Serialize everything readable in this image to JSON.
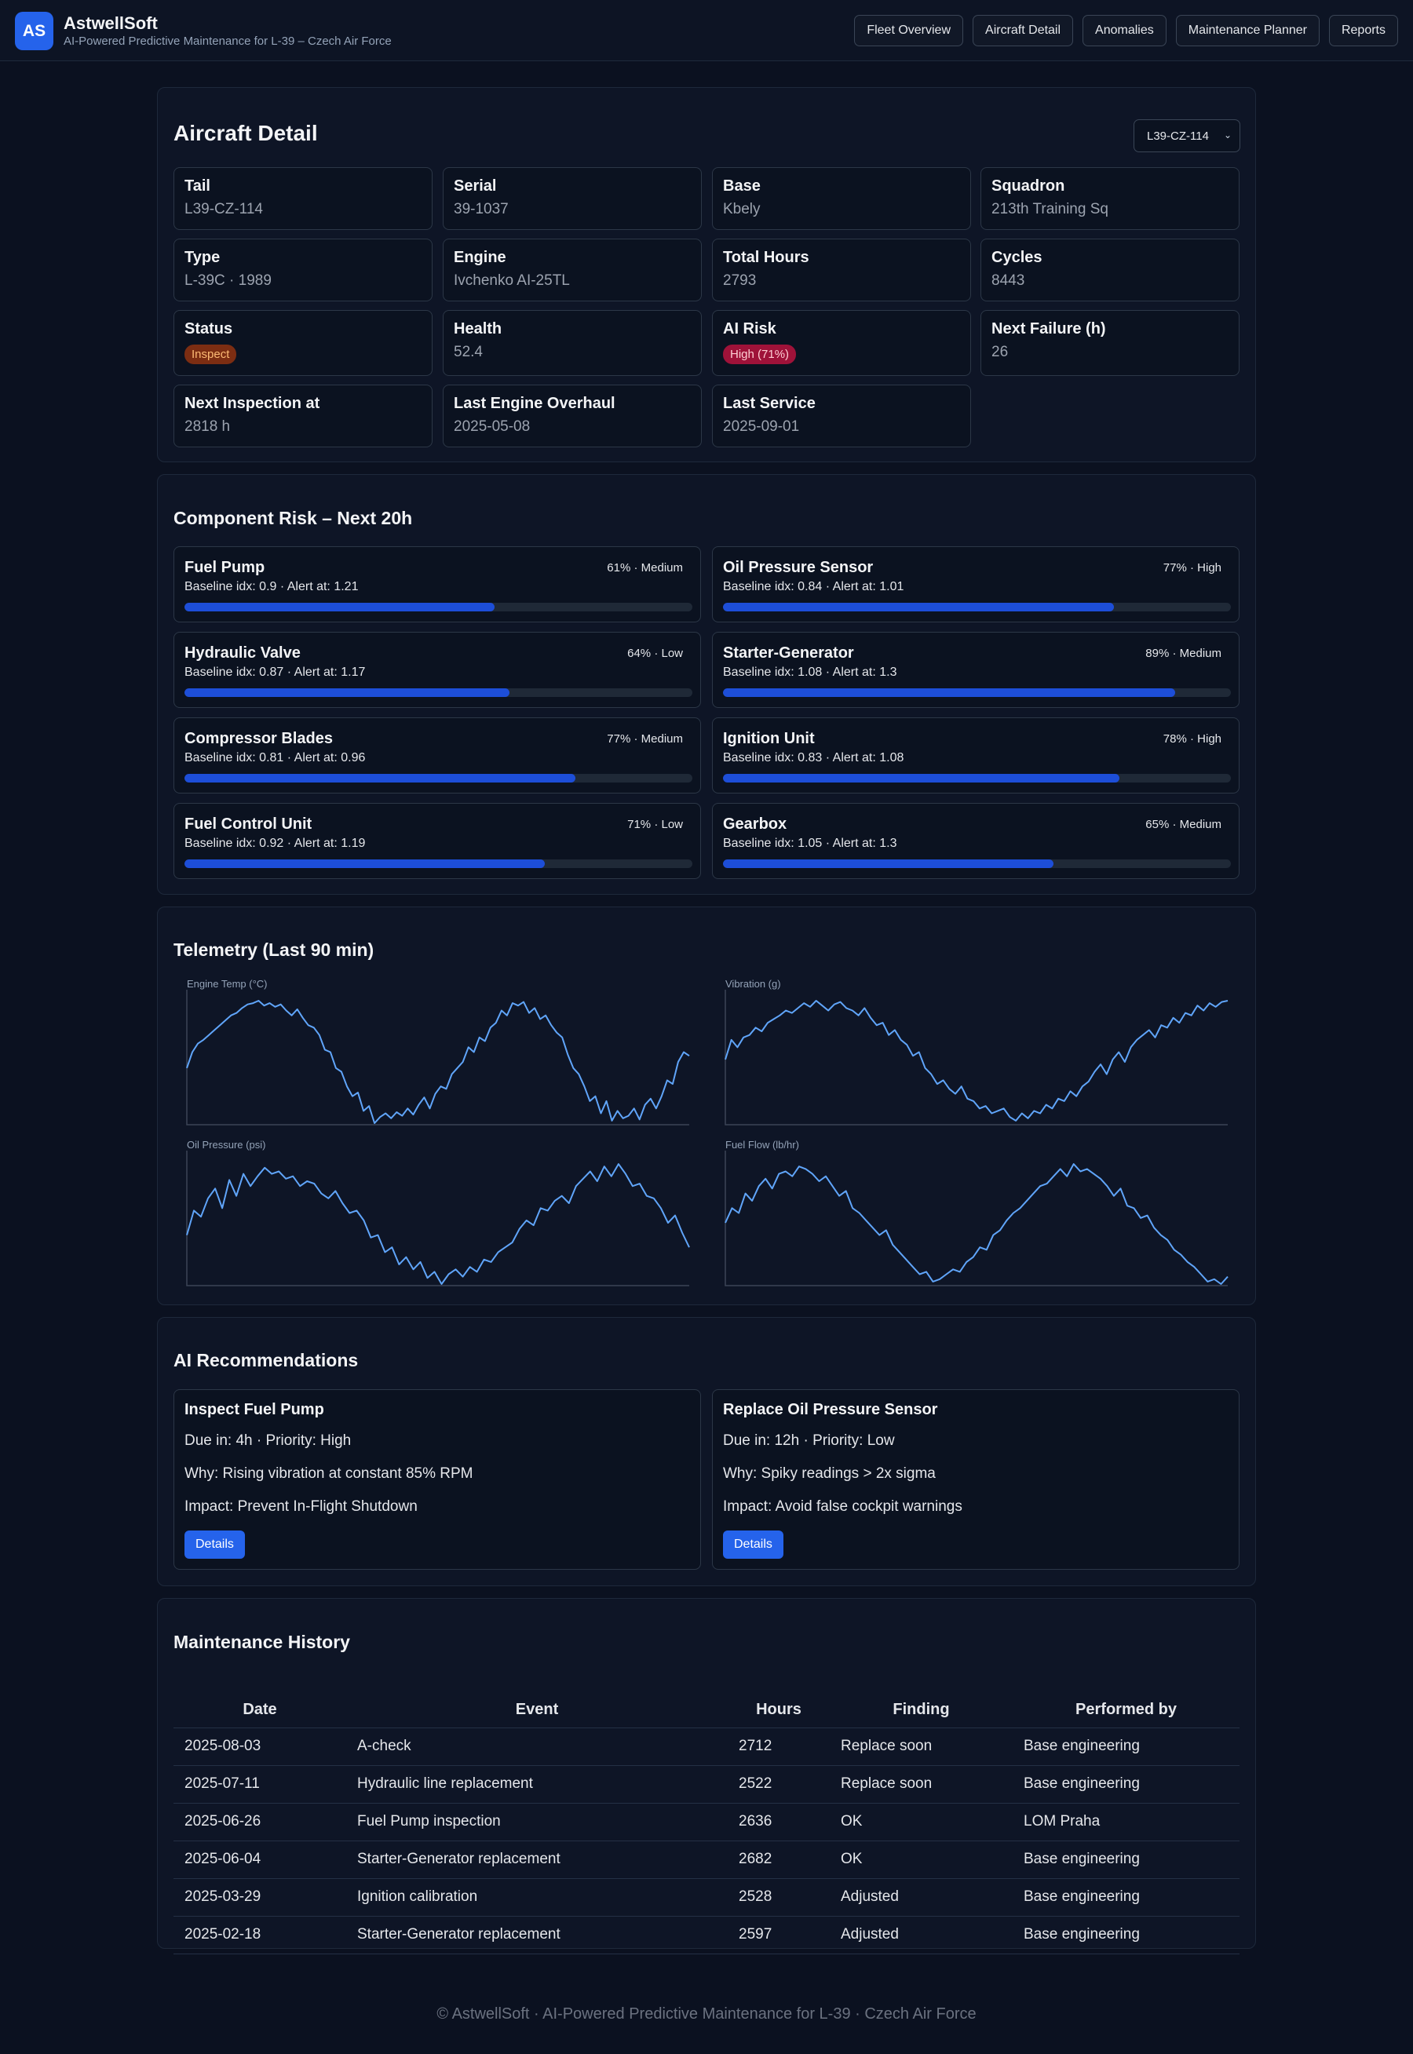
{
  "app": {
    "logo": "AS",
    "name": "AstwellSoft",
    "subtitle": "AI-Powered Predictive Maintenance for L-39 – Czech Air Force"
  },
  "nav": [
    "Fleet Overview",
    "Aircraft Detail",
    "Anomalies",
    "Maintenance Planner",
    "Reports"
  ],
  "detail": {
    "title": "Aircraft Detail",
    "selected_aircraft": "L39-CZ-114",
    "fields": [
      {
        "label": "Tail",
        "value": "L39-CZ-114"
      },
      {
        "label": "Serial",
        "value": "39-1037"
      },
      {
        "label": "Base",
        "value": "Kbely"
      },
      {
        "label": "Squadron",
        "value": "213th Training Sq"
      },
      {
        "label": "Type",
        "value": "L-39C · 1989"
      },
      {
        "label": "Engine",
        "value": "Ivchenko AI-25TL"
      },
      {
        "label": "Total Hours",
        "value": "2793"
      },
      {
        "label": "Cycles",
        "value": "8443"
      },
      {
        "label": "Status",
        "badge": "Inspect",
        "badge_color": "#7c2d12"
      },
      {
        "label": "Health",
        "value": "52.4"
      },
      {
        "label": "AI Risk",
        "badge": "High (71%)",
        "badge_color": "#9f1239"
      },
      {
        "label": "Next Failure (h)",
        "value": "26"
      },
      {
        "label": "Next Inspection at",
        "value": "2818 h"
      },
      {
        "label": "Last Engine Overhaul",
        "value": "2025-05-08"
      },
      {
        "label": "Last Service",
        "value": "2025-09-01"
      }
    ]
  },
  "risk": {
    "title": "Component Risk – Next 20h",
    "components": [
      {
        "name": "Fuel Pump",
        "tag": "61% · Medium",
        "sub": "Baseline idx: 0.9 · Alert at: 1.21",
        "level": 0.61
      },
      {
        "name": "Oil Pressure Sensor",
        "tag": "77% · High",
        "sub": "Baseline idx: 0.84 · Alert at: 1.01",
        "level": 0.77
      },
      {
        "name": "Hydraulic Valve",
        "tag": "64% · Low",
        "sub": "Baseline idx: 0.87 · Alert at: 1.17",
        "level": 0.64
      },
      {
        "name": "Starter-Generator",
        "tag": "89% · Medium",
        "sub": "Baseline idx: 1.08 · Alert at: 1.3",
        "level": 0.89
      },
      {
        "name": "Compressor Blades",
        "tag": "77% · Medium",
        "sub": "Baseline idx: 0.81 · Alert at: 0.96",
        "level": 0.77
      },
      {
        "name": "Ignition Unit",
        "tag": "78% · High",
        "sub": "Baseline idx: 0.83 · Alert at: 1.08",
        "level": 0.78
      },
      {
        "name": "Fuel Control Unit",
        "tag": "71% · Low",
        "sub": "Baseline idx: 0.92 · Alert at: 1.19",
        "level": 0.71
      },
      {
        "name": "Gearbox",
        "tag": "65% · Medium",
        "sub": "Baseline idx: 1.05 · Alert at: 1.3",
        "level": 0.65
      }
    ]
  },
  "telemetry": {
    "title": "Telemetry (Last 90 min)",
    "line_color": "#60a5fa"
  },
  "chart_data": [
    {
      "type": "line",
      "ylabel": "Engine Temp (°C)",
      "values": [
        0.45,
        0.58,
        0.65,
        0.68,
        0.72,
        0.76,
        0.8,
        0.84,
        0.88,
        0.9,
        0.94,
        0.97,
        0.98,
        1.0,
        0.96,
        0.98,
        0.95,
        0.97,
        0.92,
        0.88,
        0.93,
        0.86,
        0.8,
        0.78,
        0.72,
        0.6,
        0.58,
        0.45,
        0.42,
        0.3,
        0.22,
        0.25,
        0.1,
        0.14,
        0.0,
        0.05,
        0.08,
        0.04,
        0.09,
        0.06,
        0.12,
        0.07,
        0.15,
        0.21,
        0.12,
        0.24,
        0.3,
        0.28,
        0.4,
        0.45,
        0.5,
        0.62,
        0.58,
        0.7,
        0.67,
        0.78,
        0.82,
        0.92,
        0.88,
        0.98,
        0.96,
        0.99,
        0.9,
        0.94,
        0.85,
        0.88,
        0.8,
        0.74,
        0.7,
        0.56,
        0.45,
        0.4,
        0.3,
        0.18,
        0.22,
        0.08,
        0.18,
        0.02,
        0.1,
        0.04,
        0.06,
        0.12,
        0.03,
        0.15,
        0.2,
        0.12,
        0.22,
        0.35,
        0.32,
        0.5,
        0.58,
        0.55
      ]
    },
    {
      "type": "line",
      "ylabel": "Vibration (g)",
      "values": [
        0.52,
        0.68,
        0.62,
        0.7,
        0.72,
        0.78,
        0.75,
        0.82,
        0.85,
        0.88,
        0.92,
        0.9,
        0.94,
        0.98,
        0.95,
        1.0,
        0.96,
        0.92,
        0.97,
        0.99,
        0.94,
        0.92,
        0.88,
        0.94,
        0.86,
        0.8,
        0.82,
        0.72,
        0.76,
        0.68,
        0.64,
        0.55,
        0.58,
        0.45,
        0.4,
        0.32,
        0.35,
        0.28,
        0.24,
        0.3,
        0.2,
        0.18,
        0.12,
        0.14,
        0.08,
        0.1,
        0.12,
        0.05,
        0.02,
        0.08,
        0.04,
        0.1,
        0.08,
        0.15,
        0.12,
        0.2,
        0.18,
        0.26,
        0.22,
        0.3,
        0.34,
        0.42,
        0.48,
        0.4,
        0.52,
        0.58,
        0.5,
        0.62,
        0.68,
        0.72,
        0.76,
        0.7,
        0.8,
        0.78,
        0.86,
        0.82,
        0.9,
        0.88,
        0.96,
        0.92,
        0.98,
        0.95,
        0.99,
        1.0
      ]
    },
    {
      "type": "line",
      "ylabel": "Oil Pressure (psi)",
      "values": [
        0.4,
        0.6,
        0.55,
        0.7,
        0.78,
        0.62,
        0.85,
        0.72,
        0.9,
        0.8,
        0.88,
        0.95,
        0.9,
        0.92,
        0.86,
        0.88,
        0.8,
        0.84,
        0.82,
        0.74,
        0.7,
        0.76,
        0.66,
        0.58,
        0.6,
        0.52,
        0.38,
        0.4,
        0.26,
        0.3,
        0.16,
        0.22,
        0.12,
        0.18,
        0.05,
        0.1,
        0.0,
        0.08,
        0.12,
        0.06,
        0.14,
        0.1,
        0.2,
        0.18,
        0.26,
        0.3,
        0.34,
        0.45,
        0.52,
        0.48,
        0.62,
        0.6,
        0.68,
        0.72,
        0.66,
        0.8,
        0.86,
        0.92,
        0.84,
        0.96,
        0.88,
        0.98,
        0.9,
        0.8,
        0.82,
        0.72,
        0.7,
        0.62,
        0.5,
        0.56,
        0.42,
        0.3
      ]
    },
    {
      "type": "line",
      "ylabel": "Fuel Flow (lb/hr)",
      "values": [
        0.5,
        0.62,
        0.58,
        0.74,
        0.68,
        0.8,
        0.86,
        0.78,
        0.9,
        0.92,
        0.88,
        0.96,
        0.94,
        0.9,
        0.84,
        0.88,
        0.8,
        0.72,
        0.76,
        0.62,
        0.58,
        0.52,
        0.46,
        0.4,
        0.44,
        0.32,
        0.26,
        0.2,
        0.14,
        0.08,
        0.1,
        0.02,
        0.04,
        0.08,
        0.12,
        0.1,
        0.18,
        0.22,
        0.3,
        0.28,
        0.4,
        0.44,
        0.52,
        0.58,
        0.62,
        0.68,
        0.74,
        0.8,
        0.82,
        0.88,
        0.94,
        0.88,
        0.98,
        0.92,
        0.94,
        0.9,
        0.86,
        0.8,
        0.72,
        0.78,
        0.64,
        0.62,
        0.54,
        0.56,
        0.46,
        0.4,
        0.36,
        0.28,
        0.24,
        0.18,
        0.14,
        0.08,
        0.02,
        0.04,
        0.0,
        0.06
      ]
    }
  ],
  "recommendations": {
    "title": "AI Recommendations",
    "items": [
      {
        "title": "Inspect Fuel Pump",
        "due": "Due in: 4h · Priority: High",
        "why": "Why: Rising vibration at constant 85% RPM",
        "impact": "Impact: Prevent In-Flight Shutdown",
        "button": "Details"
      },
      {
        "title": "Replace Oil Pressure Sensor",
        "due": "Due in: 12h · Priority: Low",
        "why": "Why: Spiky readings > 2x sigma",
        "impact": "Impact: Avoid false cockpit warnings",
        "button": "Details"
      }
    ]
  },
  "history": {
    "title": "Maintenance History",
    "columns": [
      "Date",
      "Event",
      "Hours",
      "Finding",
      "Performed by"
    ],
    "rows": [
      [
        "2025-08-03",
        "A-check",
        "2712",
        "Replace soon",
        "Base engineering"
      ],
      [
        "2025-07-11",
        "Hydraulic line replacement",
        "2522",
        "Replace soon",
        "Base engineering"
      ],
      [
        "2025-06-26",
        "Fuel Pump inspection",
        "2636",
        "OK",
        "LOM Praha"
      ],
      [
        "2025-06-04",
        "Starter-Generator replacement",
        "2682",
        "OK",
        "Base engineering"
      ],
      [
        "2025-03-29",
        "Ignition calibration",
        "2528",
        "Adjusted",
        "Base engineering"
      ],
      [
        "2025-02-18",
        "Starter-Generator replacement",
        "2597",
        "Adjusted",
        "Base engineering"
      ]
    ]
  },
  "footer": "© AstwellSoft · AI-Powered Predictive Maintenance for L-39 · Czech Air Force"
}
